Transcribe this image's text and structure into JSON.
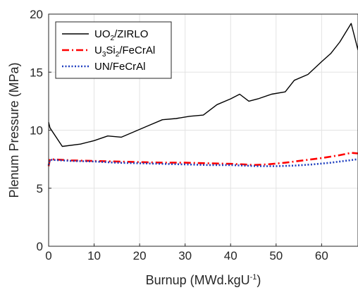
{
  "chart_data": {
    "type": "line",
    "xlabel": "Burnup (MWd.kgU",
    "xlabel_sup": "-1",
    "xlabel_tail": ")",
    "ylabel": "Plenum Pressure (MPa)",
    "xlim": [
      0,
      68
    ],
    "ylim": [
      0,
      20
    ],
    "xticks": [
      0,
      10,
      20,
      30,
      40,
      50,
      60
    ],
    "yticks": [
      0,
      5,
      10,
      15,
      20
    ],
    "grid": true,
    "legend_position": "top-left",
    "series": [
      {
        "name": "UO2/ZIRLO",
        "legend": [
          {
            "t": "UO"
          },
          {
            "t": "2",
            "sub": true
          },
          {
            "t": "/ZIRLO"
          }
        ],
        "color": "#000000",
        "style": "solid",
        "x": [
          0,
          0.3,
          3,
          7,
          10,
          13,
          16,
          19,
          22,
          25,
          28,
          31,
          34,
          37,
          40,
          42,
          44,
          46,
          49,
          52,
          54,
          57,
          60,
          62,
          64,
          66.5,
          68
        ],
        "y": [
          10.7,
          10.2,
          8.6,
          8.8,
          9.1,
          9.5,
          9.4,
          9.9,
          10.4,
          10.9,
          11.0,
          11.2,
          11.3,
          12.2,
          12.7,
          13.1,
          12.5,
          12.7,
          13.1,
          13.3,
          14.3,
          14.8,
          15.9,
          16.6,
          17.6,
          19.2,
          16.9
        ]
      },
      {
        "name": "U3Si2/FeCrAl",
        "legend": [
          {
            "t": "U"
          },
          {
            "t": "3",
            "sub": true
          },
          {
            "t": "Si"
          },
          {
            "t": "2",
            "sub": true
          },
          {
            "t": "/FeCrAl"
          }
        ],
        "color": "#ff0000",
        "style": "dashdot",
        "x": [
          0,
          0.3,
          5,
          10,
          15,
          20,
          25,
          30,
          35,
          40,
          43,
          45,
          48,
          52,
          56,
          60,
          64,
          66.5,
          68
        ],
        "y": [
          6.9,
          7.5,
          7.4,
          7.35,
          7.3,
          7.25,
          7.2,
          7.2,
          7.15,
          7.1,
          7.05,
          7.0,
          7.05,
          7.2,
          7.4,
          7.6,
          7.85,
          8.05,
          8.0
        ]
      },
      {
        "name": "UN/FeCrAl",
        "legend": [
          {
            "t": "UN/FeCrAl"
          }
        ],
        "color": "#1f3fbf",
        "style": "dotted",
        "x": [
          0,
          0.3,
          5,
          10,
          15,
          20,
          25,
          30,
          35,
          40,
          43,
          46,
          50,
          54,
          58,
          62,
          66,
          68
        ],
        "y": [
          7.0,
          7.45,
          7.35,
          7.3,
          7.2,
          7.15,
          7.1,
          7.05,
          7.0,
          7.0,
          6.95,
          6.9,
          6.9,
          6.95,
          7.05,
          7.2,
          7.4,
          7.5
        ]
      }
    ]
  }
}
